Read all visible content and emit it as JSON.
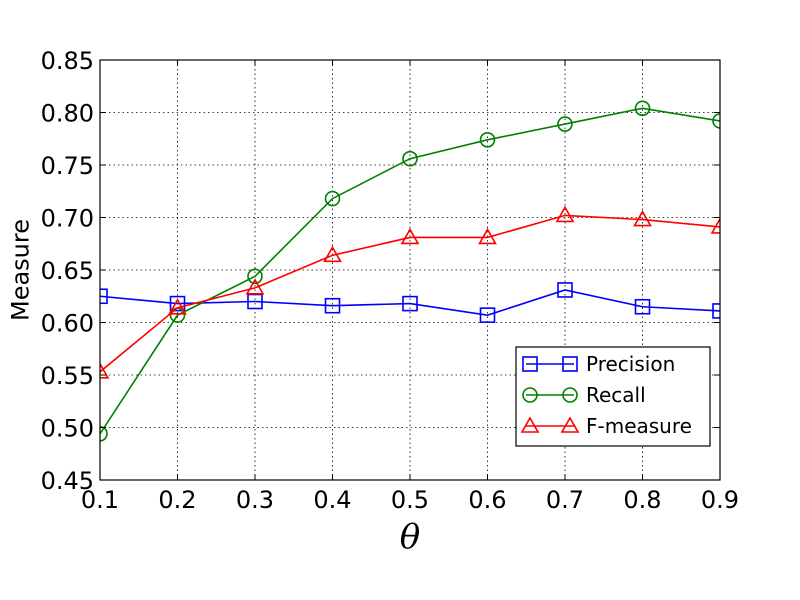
{
  "chart_data": {
    "type": "line",
    "xlabel": "θ",
    "ylabel": "Measure",
    "xlim": [
      0.1,
      0.9
    ],
    "ylim": [
      0.45,
      0.85
    ],
    "grid": true,
    "legend_position": "lower-right",
    "x": [
      0.1,
      0.2,
      0.3,
      0.4,
      0.5,
      0.6,
      0.7,
      0.8,
      0.9
    ],
    "x_tick_labels": [
      "0.1",
      "0.2",
      "0.3",
      "0.4",
      "0.5",
      "0.6",
      "0.7",
      "0.8",
      "0.9"
    ],
    "y_ticks": [
      0.45,
      0.5,
      0.55,
      0.6,
      0.65,
      0.7,
      0.75,
      0.8,
      0.85
    ],
    "y_tick_labels": [
      "0.45",
      "0.50",
      "0.55",
      "0.60",
      "0.65",
      "0.70",
      "0.75",
      "0.80",
      "0.85"
    ],
    "series": [
      {
        "name": "Precision",
        "color": "#0000ff",
        "marker": "square",
        "values": [
          0.625,
          0.618,
          0.62,
          0.616,
          0.618,
          0.607,
          0.631,
          0.615,
          0.611
        ]
      },
      {
        "name": "Recall",
        "color": "#008000",
        "marker": "circle",
        "values": [
          0.494,
          0.607,
          0.644,
          0.718,
          0.756,
          0.774,
          0.789,
          0.804,
          0.792
        ]
      },
      {
        "name": "F-measure",
        "color": "#ff0000",
        "marker": "triangle",
        "values": [
          0.553,
          0.614,
          0.633,
          0.664,
          0.681,
          0.681,
          0.702,
          0.698,
          0.691
        ]
      }
    ]
  }
}
